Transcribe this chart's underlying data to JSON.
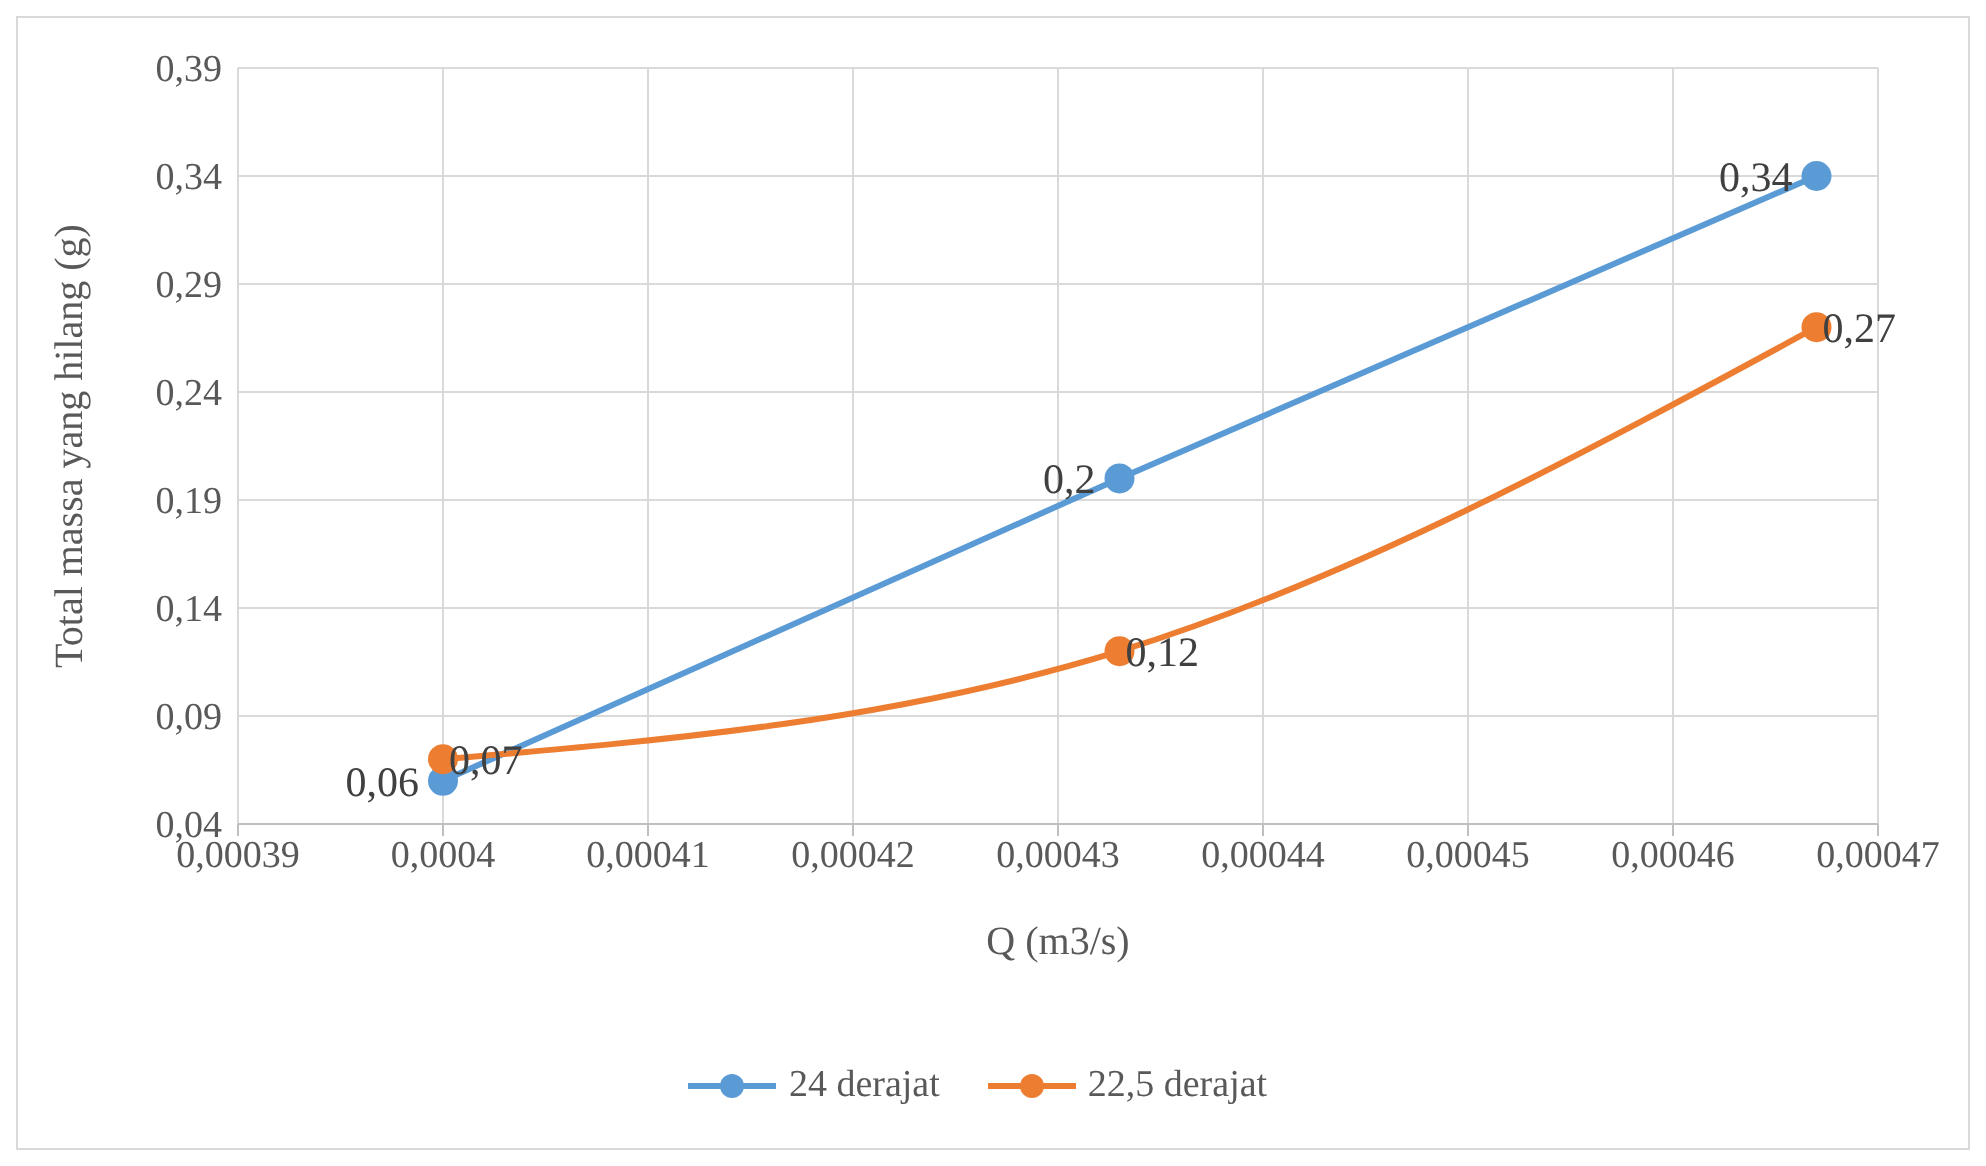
{
  "chart_data": {
    "type": "line",
    "xlabel": "Q (m3/s)",
    "ylabel": "Total massa yang hilang (g)",
    "xlim": [
      0.00039,
      0.00047
    ],
    "xticks": [
      {
        "value": 0.00039,
        "label": "0,00039"
      },
      {
        "value": 0.0004,
        "label": "0,0004"
      },
      {
        "value": 0.00041,
        "label": "0,00041"
      },
      {
        "value": 0.00042,
        "label": "0,00042"
      },
      {
        "value": 0.00043,
        "label": "0,00043"
      },
      {
        "value": 0.00044,
        "label": "0,00044"
      },
      {
        "value": 0.00045,
        "label": "0,00045"
      },
      {
        "value": 0.00046,
        "label": "0,00046"
      },
      {
        "value": 0.00047,
        "label": "0,00047"
      }
    ],
    "ylim": [
      0.04,
      0.39
    ],
    "yticks": [
      {
        "value": 0.04,
        "label": "0,04"
      },
      {
        "value": 0.09,
        "label": "0,09"
      },
      {
        "value": 0.14,
        "label": "0,14"
      },
      {
        "value": 0.19,
        "label": "0,19"
      },
      {
        "value": 0.24,
        "label": "0,24"
      },
      {
        "value": 0.29,
        "label": "0,29"
      },
      {
        "value": 0.34,
        "label": "0,34"
      },
      {
        "value": 0.39,
        "label": "0,39"
      }
    ],
    "grid": true,
    "legend": "bottom",
    "marker": "circle",
    "line_style": "solid",
    "series": [
      {
        "name": "24 derajat",
        "color": "#5b9bd5",
        "x": [
          0.0004,
          0.000433,
          0.000467
        ],
        "values": [
          0.06,
          0.2,
          0.34
        ],
        "value_labels": [
          "0,06",
          "0,2",
          "0,34"
        ]
      },
      {
        "name": "22,5 derajat",
        "color": "#ed7d31",
        "x": [
          0.0004,
          0.000433,
          0.000467
        ],
        "values": [
          0.07,
          0.12,
          0.27
        ],
        "value_labels": [
          "0,07",
          "0,12",
          "0,27"
        ]
      }
    ]
  }
}
